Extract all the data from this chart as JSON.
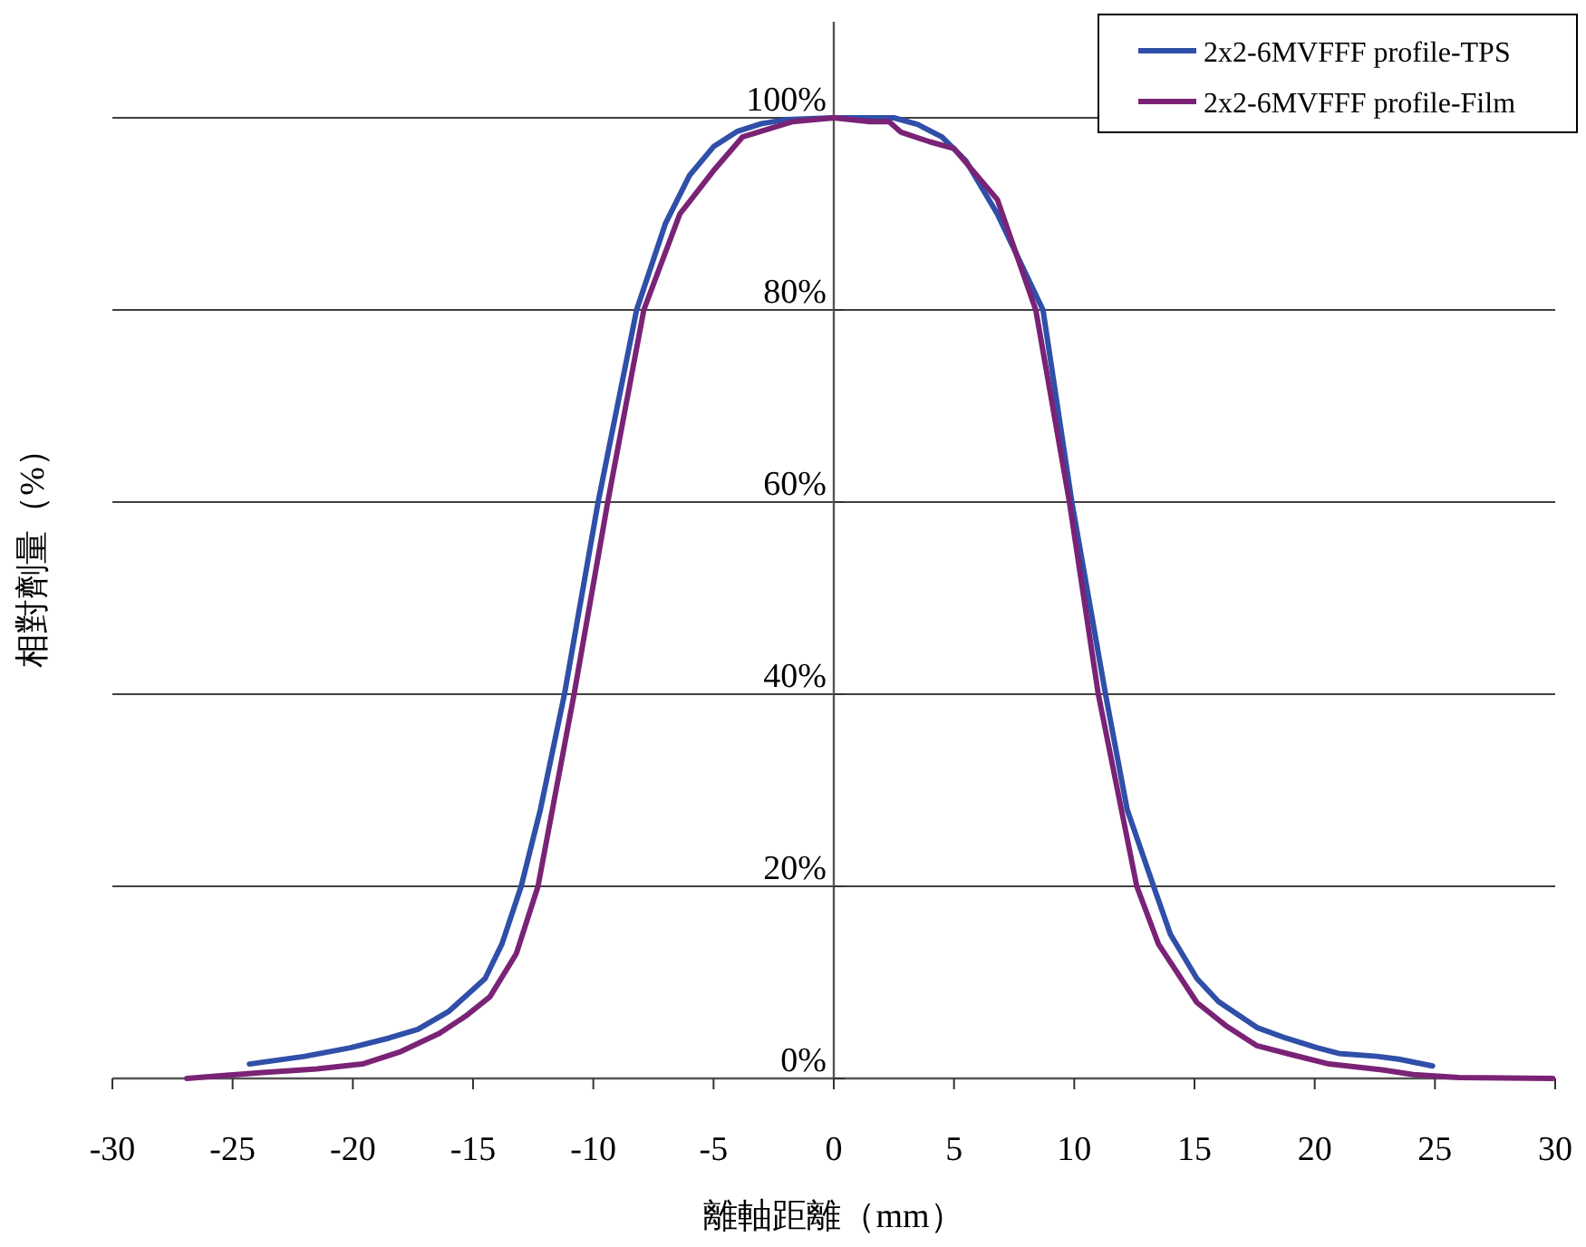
{
  "chart_data": {
    "type": "line",
    "xlabel": "離軸距離（mm）",
    "ylabel": "相對劑量（%）",
    "xlim": [
      -30,
      30
    ],
    "xticks": [
      -30,
      -25,
      -20,
      -15,
      -10,
      -5,
      0,
      5,
      10,
      15,
      20,
      25,
      30
    ],
    "ylim": [
      0,
      110
    ],
    "yticks": [
      {
        "value": 0,
        "label": "0%"
      },
      {
        "value": 20,
        "label": "20%"
      },
      {
        "value": 40,
        "label": "40%"
      },
      {
        "value": 60,
        "label": "60%"
      },
      {
        "value": 80,
        "label": "80%"
      },
      {
        "value": 100,
        "label": "100%"
      }
    ],
    "grid": "y",
    "legend": "top right",
    "marker": "none",
    "line_style": "solid",
    "series": [
      {
        "name": "2x2-6MVFFF profile-TPS",
        "color": "#2f4fa8",
        "x": [
          -24.3,
          -22,
          -20.1,
          -18.5,
          -17.3,
          -16,
          -14.5,
          -13.8,
          -13,
          -12.2,
          -11.2,
          -10.5,
          -9.8,
          -9,
          -8.2,
          -7,
          -6,
          -5,
          -4,
          -3,
          -2,
          0,
          2.5,
          3.5,
          4.5,
          5.5,
          6.8,
          8.7,
          9.9,
          11.3,
          12.2,
          13.3,
          14,
          15.1,
          16,
          17.6,
          18.8,
          20.1,
          21,
          22.6,
          23.5,
          24.9
        ],
        "values": [
          1.5,
          2.3,
          3.2,
          4.2,
          5.1,
          7,
          10.4,
          14,
          20,
          28,
          40,
          50,
          60,
          70,
          80,
          89,
          94,
          97,
          98.6,
          99.4,
          99.8,
          100,
          100,
          99.3,
          98,
          95.5,
          90,
          80,
          60,
          40,
          28,
          20,
          15,
          10.4,
          8,
          5.3,
          4.2,
          3.2,
          2.6,
          2.3,
          2,
          1.3
        ]
      },
      {
        "name": "2x2-6MVFFF profile-Film",
        "color": "#7a2376",
        "x": [
          -26.9,
          -23.9,
          -21.5,
          -19.6,
          -18,
          -16.4,
          -15.3,
          -14.3,
          -13.2,
          -12.3,
          -10.8,
          -9.4,
          -7.9,
          -6.4,
          -5,
          -3.8,
          -1.7,
          0,
          1.5,
          2.3,
          2.8,
          4,
          5,
          6.8,
          8.4,
          9.8,
          11,
          12.6,
          13.5,
          15.1,
          16.3,
          17.6,
          19,
          20.6,
          22.8,
          24.1,
          26,
          29.9
        ],
        "values": [
          0,
          0.6,
          1,
          1.5,
          2.8,
          4.7,
          6.5,
          8.5,
          13,
          20,
          40,
          60,
          80,
          90,
          94.5,
          98,
          99.6,
          100,
          99.6,
          99.6,
          98.5,
          97.5,
          96.8,
          91.5,
          80,
          60,
          40,
          20,
          14,
          7.9,
          5.5,
          3.4,
          2.5,
          1.5,
          0.9,
          0.4,
          0.1,
          0
        ]
      }
    ]
  }
}
